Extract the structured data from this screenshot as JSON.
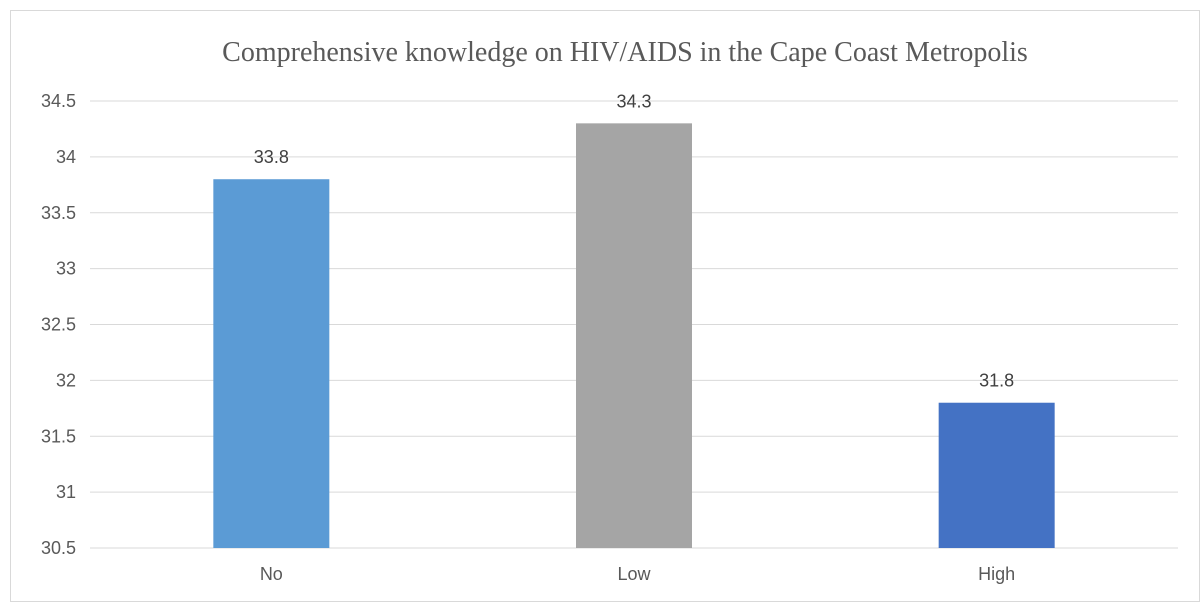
{
  "chart_data": {
    "type": "bar",
    "title": "Comprehensive knowledge on HIV/AIDS in the Cape Coast Metropolis",
    "categories": [
      "No",
      "Low",
      "High"
    ],
    "values": [
      33.8,
      34.3,
      31.8
    ],
    "data_labels": [
      "33.8",
      "34.3",
      "31.8"
    ],
    "colors": [
      "#5b9bd5",
      "#a5a5a5",
      "#4472c4"
    ],
    "ylim": [
      30.5,
      34.5
    ],
    "yticks": [
      "30.5",
      "31",
      "31.5",
      "32",
      "32.5",
      "33",
      "33.5",
      "34",
      "34.5"
    ],
    "grid": true,
    "legend": "none",
    "xlabel": "",
    "ylabel": ""
  }
}
